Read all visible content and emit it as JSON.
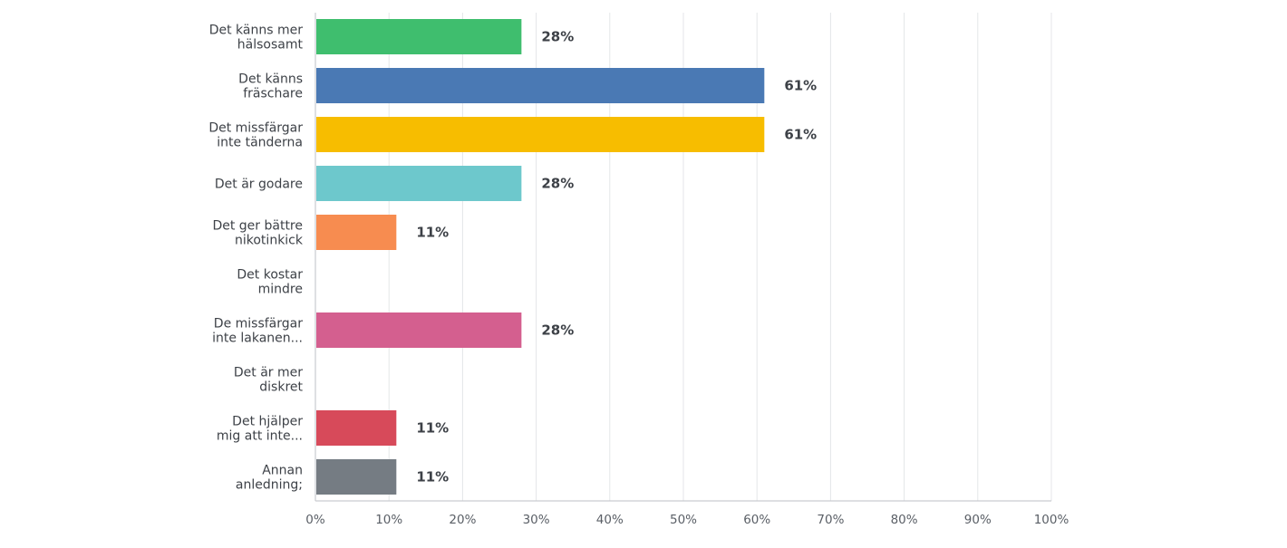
{
  "chart_data": {
    "type": "bar",
    "orientation": "horizontal",
    "categories": [
      [
        "Det känns mer",
        "hälsosamt"
      ],
      [
        "Det känns",
        "fräschare"
      ],
      [
        "Det missfärgar",
        "inte tänderna"
      ],
      [
        "Det är godare"
      ],
      [
        "Det ger bättre",
        "nikotinkick"
      ],
      [
        "Det kostar",
        "mindre"
      ],
      [
        "De missfärgar",
        "inte lakanen..."
      ],
      [
        "Det är mer",
        "diskret"
      ],
      [
        "Det hjälper",
        "mig att inte..."
      ],
      [
        "Annan",
        "anledning;"
      ]
    ],
    "values": [
      28,
      61,
      61,
      28,
      11,
      0,
      28,
      0,
      11,
      11
    ],
    "data_labels": [
      "28%",
      "61%",
      "61%",
      "28%",
      "11%",
      "",
      "28%",
      "",
      "11%",
      "11%"
    ],
    "colors": [
      "#3fbe6e",
      "#4a79b4",
      "#f7bd00",
      "#6dc8cc",
      "#f78c50",
      "#888888",
      "#d45f8f",
      "#888888",
      "#d74a5a",
      "#757c83"
    ],
    "xlim": [
      0,
      100
    ],
    "xticks": [
      "0%",
      "10%",
      "20%",
      "30%",
      "40%",
      "50%",
      "60%",
      "70%",
      "80%",
      "90%",
      "100%"
    ],
    "grid": true,
    "title": "",
    "xlabel": "",
    "ylabel": ""
  }
}
